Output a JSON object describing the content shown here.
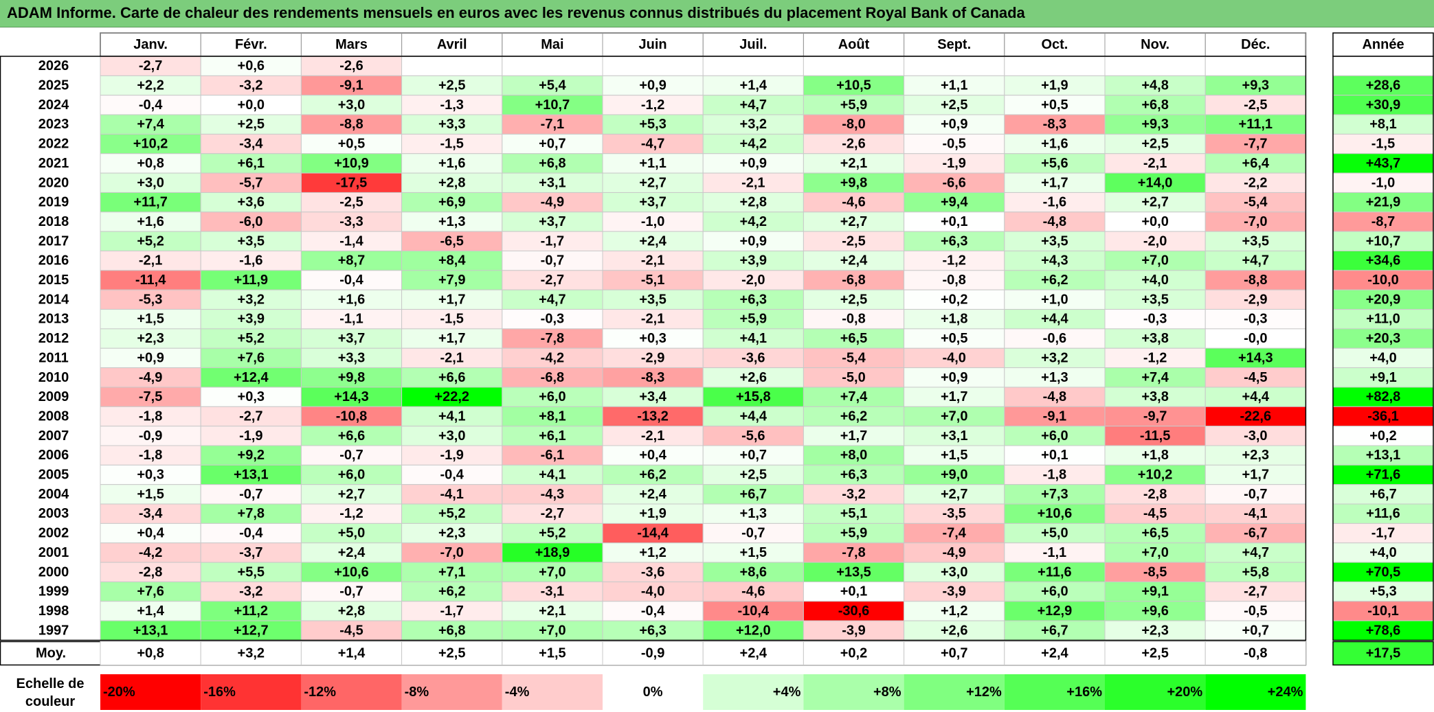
{
  "title": "ADAM Informe. Carte de chaleur des rendements mensuels en euros avec les revenus connus distribués du placement Royal Bank of Canada",
  "chart_data": {
    "type": "heatmap",
    "columns": [
      "Janv.",
      "Févr.",
      "Mars",
      "Avril",
      "Mai",
      "Juin",
      "Juil.",
      "Août",
      "Sept.",
      "Oct.",
      "Nov.",
      "Déc."
    ],
    "year_column_label": "Année",
    "rows": [
      {
        "year": "2026",
        "values": [
          "-2,7",
          "+0,6",
          "-2,6",
          "",
          "",
          "",
          "",
          "",
          "",
          "",
          "",
          ""
        ],
        "annual": ""
      },
      {
        "year": "2025",
        "values": [
          "+2,2",
          "-3,2",
          "-9,1",
          "+2,5",
          "+5,4",
          "+0,9",
          "+1,4",
          "+10,5",
          "+1,1",
          "+1,9",
          "+4,8",
          "+9,3"
        ],
        "annual": "+28,6"
      },
      {
        "year": "2024",
        "values": [
          "-0,4",
          "+0,0",
          "+3,0",
          "-1,3",
          "+10,7",
          "-1,2",
          "+4,7",
          "+5,9",
          "+2,5",
          "+0,5",
          "+6,8",
          "-2,5"
        ],
        "annual": "+30,9"
      },
      {
        "year": "2023",
        "values": [
          "+7,4",
          "+2,5",
          "-8,8",
          "+3,3",
          "-7,1",
          "+5,3",
          "+3,2",
          "-8,0",
          "+0,9",
          "-8,3",
          "+9,3",
          "+11,1"
        ],
        "annual": "+8,1"
      },
      {
        "year": "2022",
        "values": [
          "+10,2",
          "-3,4",
          "+0,5",
          "-1,5",
          "+0,7",
          "-4,7",
          "+4,2",
          "-2,6",
          "-0,5",
          "+1,6",
          "+2,5",
          "-7,7"
        ],
        "annual": "-1,5"
      },
      {
        "year": "2021",
        "values": [
          "+0,8",
          "+6,1",
          "+10,9",
          "+1,6",
          "+6,8",
          "+1,1",
          "+0,9",
          "+2,1",
          "-1,9",
          "+5,6",
          "-2,1",
          "+6,4"
        ],
        "annual": "+43,7"
      },
      {
        "year": "2020",
        "values": [
          "+3,0",
          "-5,7",
          "-17,5",
          "+2,8",
          "+3,1",
          "+2,7",
          "-2,1",
          "+9,8",
          "-6,6",
          "+1,7",
          "+14,0",
          "-2,2"
        ],
        "annual": "-1,0"
      },
      {
        "year": "2019",
        "values": [
          "+11,7",
          "+3,6",
          "-2,5",
          "+6,9",
          "-4,9",
          "+3,7",
          "+2,8",
          "-4,6",
          "+9,4",
          "-1,6",
          "+2,7",
          "-5,4"
        ],
        "annual": "+21,9"
      },
      {
        "year": "2018",
        "values": [
          "+1,6",
          "-6,0",
          "-3,3",
          "+1,3",
          "+3,7",
          "-1,0",
          "+4,2",
          "+2,7",
          "+0,1",
          "-4,8",
          "+0,0",
          "-7,0"
        ],
        "annual": "-8,7"
      },
      {
        "year": "2017",
        "values": [
          "+5,2",
          "+3,5",
          "-1,4",
          "-6,5",
          "-1,7",
          "+2,4",
          "+0,9",
          "-2,5",
          "+6,3",
          "+3,5",
          "-2,0",
          "+3,5"
        ],
        "annual": "+10,7"
      },
      {
        "year": "2016",
        "values": [
          "-2,1",
          "-1,6",
          "+8,7",
          "+8,4",
          "-0,7",
          "-2,1",
          "+3,9",
          "+2,4",
          "-1,2",
          "+4,3",
          "+7,0",
          "+4,7"
        ],
        "annual": "+34,6"
      },
      {
        "year": "2015",
        "values": [
          "-11,4",
          "+11,9",
          "-0,4",
          "+7,9",
          "-2,7",
          "-5,1",
          "-2,0",
          "-6,8",
          "-0,8",
          "+6,2",
          "+4,0",
          "-8,8"
        ],
        "annual": "-10,0"
      },
      {
        "year": "2014",
        "values": [
          "-5,3",
          "+3,2",
          "+1,6",
          "+1,7",
          "+4,7",
          "+3,5",
          "+6,3",
          "+2,5",
          "+0,2",
          "+1,0",
          "+3,5",
          "-2,9"
        ],
        "annual": "+20,9"
      },
      {
        "year": "2013",
        "values": [
          "+1,5",
          "+3,9",
          "-1,1",
          "-1,5",
          "-0,3",
          "-2,1",
          "+5,9",
          "-0,8",
          "+1,8",
          "+4,4",
          "-0,3",
          "-0,3"
        ],
        "annual": "+11,0"
      },
      {
        "year": "2012",
        "values": [
          "+2,3",
          "+5,2",
          "+3,7",
          "+1,7",
          "-7,8",
          "+0,3",
          "+4,1",
          "+6,5",
          "+0,5",
          "-0,6",
          "+3,8",
          "-0,0"
        ],
        "annual": "+20,3"
      },
      {
        "year": "2011",
        "values": [
          "+0,9",
          "+7,6",
          "+3,3",
          "-2,1",
          "-4,2",
          "-2,9",
          "-3,6",
          "-5,4",
          "-4,0",
          "+3,2",
          "-1,2",
          "+14,3"
        ],
        "annual": "+4,0"
      },
      {
        "year": "2010",
        "values": [
          "-4,9",
          "+12,4",
          "+9,8",
          "+6,6",
          "-6,8",
          "-8,3",
          "+2,6",
          "-5,0",
          "+0,9",
          "+1,3",
          "+7,4",
          "-4,5"
        ],
        "annual": "+9,1"
      },
      {
        "year": "2009",
        "values": [
          "-7,5",
          "+0,3",
          "+14,3",
          "+22,2",
          "+6,0",
          "+3,4",
          "+15,8",
          "+7,4",
          "+1,7",
          "-4,8",
          "+3,8",
          "+4,4"
        ],
        "annual": "+82,8"
      },
      {
        "year": "2008",
        "values": [
          "-1,8",
          "-2,7",
          "-10,8",
          "+4,1",
          "+8,1",
          "-13,2",
          "+4,4",
          "+6,2",
          "+7,0",
          "-9,1",
          "-9,7",
          "-22,6"
        ],
        "annual": "-36,1"
      },
      {
        "year": "2007",
        "values": [
          "-0,9",
          "-1,9",
          "+6,6",
          "+3,0",
          "+6,1",
          "-2,1",
          "-5,6",
          "+1,7",
          "+3,1",
          "+6,0",
          "-11,5",
          "-3,0"
        ],
        "annual": "+0,2"
      },
      {
        "year": "2006",
        "values": [
          "-1,8",
          "+9,2",
          "-0,7",
          "-1,9",
          "-6,1",
          "+0,4",
          "+0,7",
          "+8,0",
          "+1,5",
          "+0,1",
          "+1,8",
          "+2,3"
        ],
        "annual": "+13,1"
      },
      {
        "year": "2005",
        "values": [
          "+0,3",
          "+13,1",
          "+6,0",
          "-0,4",
          "+4,1",
          "+6,2",
          "+2,5",
          "+6,3",
          "+9,0",
          "-1,8",
          "+10,2",
          "+1,7"
        ],
        "annual": "+71,6"
      },
      {
        "year": "2004",
        "values": [
          "+1,5",
          "-0,7",
          "+2,7",
          "-4,1",
          "-4,3",
          "+2,4",
          "+6,7",
          "-3,2",
          "+2,7",
          "+7,3",
          "-2,8",
          "-0,7"
        ],
        "annual": "+6,7"
      },
      {
        "year": "2003",
        "values": [
          "-3,4",
          "+7,8",
          "-1,2",
          "+5,2",
          "-2,7",
          "+1,9",
          "+1,3",
          "+5,1",
          "-3,5",
          "+10,6",
          "-4,5",
          "-4,1"
        ],
        "annual": "+11,6"
      },
      {
        "year": "2002",
        "values": [
          "+0,4",
          "-0,4",
          "+5,0",
          "+2,3",
          "+5,2",
          "-14,4",
          "-0,7",
          "+5,9",
          "-7,4",
          "+5,0",
          "+6,5",
          "-6,7"
        ],
        "annual": "-1,7"
      },
      {
        "year": "2001",
        "values": [
          "-4,2",
          "-3,7",
          "+2,4",
          "-7,0",
          "+18,9",
          "+1,2",
          "+1,5",
          "-7,8",
          "-4,9",
          "-1,1",
          "+7,0",
          "+4,7"
        ],
        "annual": "+4,0"
      },
      {
        "year": "2000",
        "values": [
          "-2,8",
          "+5,5",
          "+10,6",
          "+7,1",
          "+7,0",
          "-3,6",
          "+8,6",
          "+13,5",
          "+3,0",
          "+11,6",
          "-8,5",
          "+5,8"
        ],
        "annual": "+70,5"
      },
      {
        "year": "1999",
        "values": [
          "+7,6",
          "-3,2",
          "-0,7",
          "+6,2",
          "-3,1",
          "-4,0",
          "-4,6",
          "+0,1",
          "-3,9",
          "+6,0",
          "+9,1",
          "-2,7"
        ],
        "annual": "+5,3"
      },
      {
        "year": "1998",
        "values": [
          "+1,4",
          "+11,2",
          "+2,8",
          "-1,7",
          "+2,1",
          "-0,4",
          "-10,4",
          "-30,6",
          "+1,2",
          "+12,9",
          "+9,6",
          "-0,5"
        ],
        "annual": "-10,1"
      },
      {
        "year": "1997",
        "values": [
          "+13,1",
          "+12,7",
          "-4,5",
          "+6,8",
          "+7,0",
          "+6,3",
          "+12,0",
          "-3,9",
          "+2,6",
          "+6,7",
          "+2,3",
          "+0,7"
        ],
        "annual": "+78,6"
      }
    ],
    "average": {
      "label": "Moy.",
      "values": [
        "+0,8",
        "+3,2",
        "+1,4",
        "+2,5",
        "+1,5",
        "-0,9",
        "+2,4",
        "+0,2",
        "+0,7",
        "+2,4",
        "+2,5",
        "-0,8"
      ],
      "annual": "+17,5"
    },
    "color_scale": {
      "label_line1": "Echelle de",
      "label_line2": "couleur",
      "steps": [
        "-20%",
        "-16%",
        "-12%",
        "-8%",
        "-4%",
        "0%",
        "+4%",
        "+8%",
        "+12%",
        "+16%",
        "+20%",
        "+24%"
      ],
      "step_values": [
        -20,
        -16,
        -12,
        -8,
        -4,
        0,
        4,
        8,
        12,
        16,
        20,
        24
      ]
    },
    "colors": {
      "negative_extreme": "#ff0000",
      "neutral": "#ffffff",
      "positive_extreme": "#00ff00",
      "title_bg": "#7ccd7c"
    }
  }
}
